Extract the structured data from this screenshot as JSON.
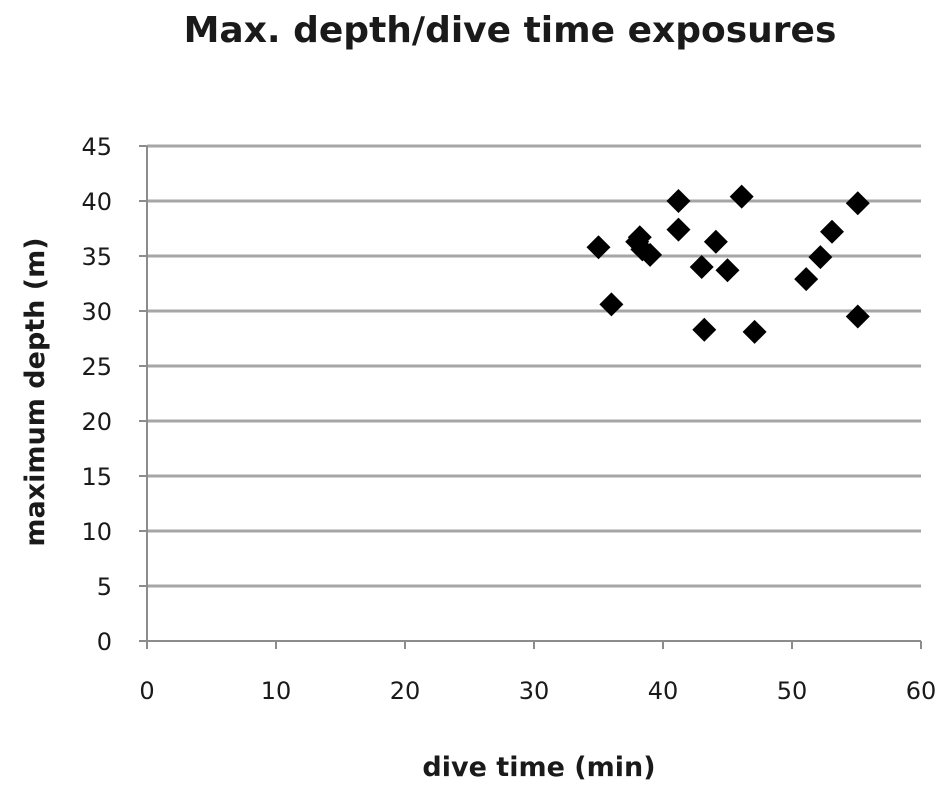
{
  "chart_data": {
    "type": "scatter",
    "title": "Max. depth/dive time exposures",
    "xlabel": "dive time (min)",
    "ylabel": "maximum depth (m)",
    "xlim": [
      0,
      60
    ],
    "ylim": [
      0,
      45
    ],
    "x_ticks": [
      0,
      10,
      20,
      30,
      40,
      50,
      60
    ],
    "y_ticks": [
      0,
      5,
      10,
      15,
      20,
      25,
      30,
      35,
      40,
      45
    ],
    "grid": "horizontal",
    "legend": "none",
    "marker": "diamond",
    "marker_color": "#000000",
    "points": [
      {
        "x": 35,
        "y": 35.8
      },
      {
        "x": 36,
        "y": 30.6
      },
      {
        "x": 38,
        "y": 36.3
      },
      {
        "x": 38.2,
        "y": 36.7
      },
      {
        "x": 38.4,
        "y": 35.6
      },
      {
        "x": 39,
        "y": 35.1
      },
      {
        "x": 41.2,
        "y": 40.0
      },
      {
        "x": 41.2,
        "y": 37.4
      },
      {
        "x": 43,
        "y": 34.0
      },
      {
        "x": 43.2,
        "y": 28.3
      },
      {
        "x": 44.1,
        "y": 36.3
      },
      {
        "x": 45,
        "y": 33.7
      },
      {
        "x": 46.1,
        "y": 40.4
      },
      {
        "x": 47.1,
        "y": 28.1
      },
      {
        "x": 51.1,
        "y": 32.9
      },
      {
        "x": 52.2,
        "y": 34.9
      },
      {
        "x": 53.1,
        "y": 37.2
      },
      {
        "x": 55.1,
        "y": 39.8
      },
      {
        "x": 55.1,
        "y": 29.5
      }
    ]
  }
}
